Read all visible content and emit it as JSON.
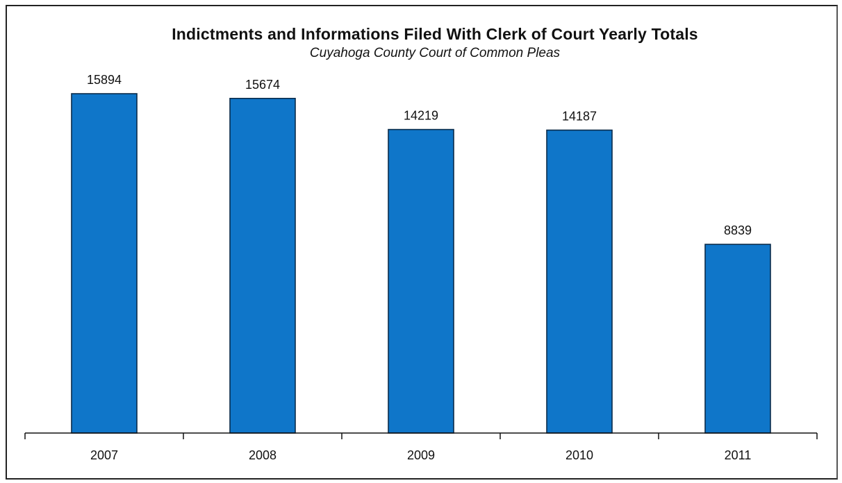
{
  "chart_data": {
    "type": "bar",
    "title": "Indictments and Informations Filed With Clerk of Court Yearly Totals",
    "subtitle": "Cuyahoga County Court of Common Pleas",
    "categories": [
      "2007",
      "2008",
      "2009",
      "2010",
      "2011"
    ],
    "values": [
      15894,
      15674,
      14219,
      14187,
      8839
    ],
    "data_labels": [
      "15894",
      "15674",
      "14219",
      "14187",
      "8839"
    ],
    "ylim": [
      0,
      17000
    ],
    "grid": false,
    "legend": "none",
    "bar_color": "#0f76c9",
    "bar_edge_color": "#0a2b4a"
  }
}
